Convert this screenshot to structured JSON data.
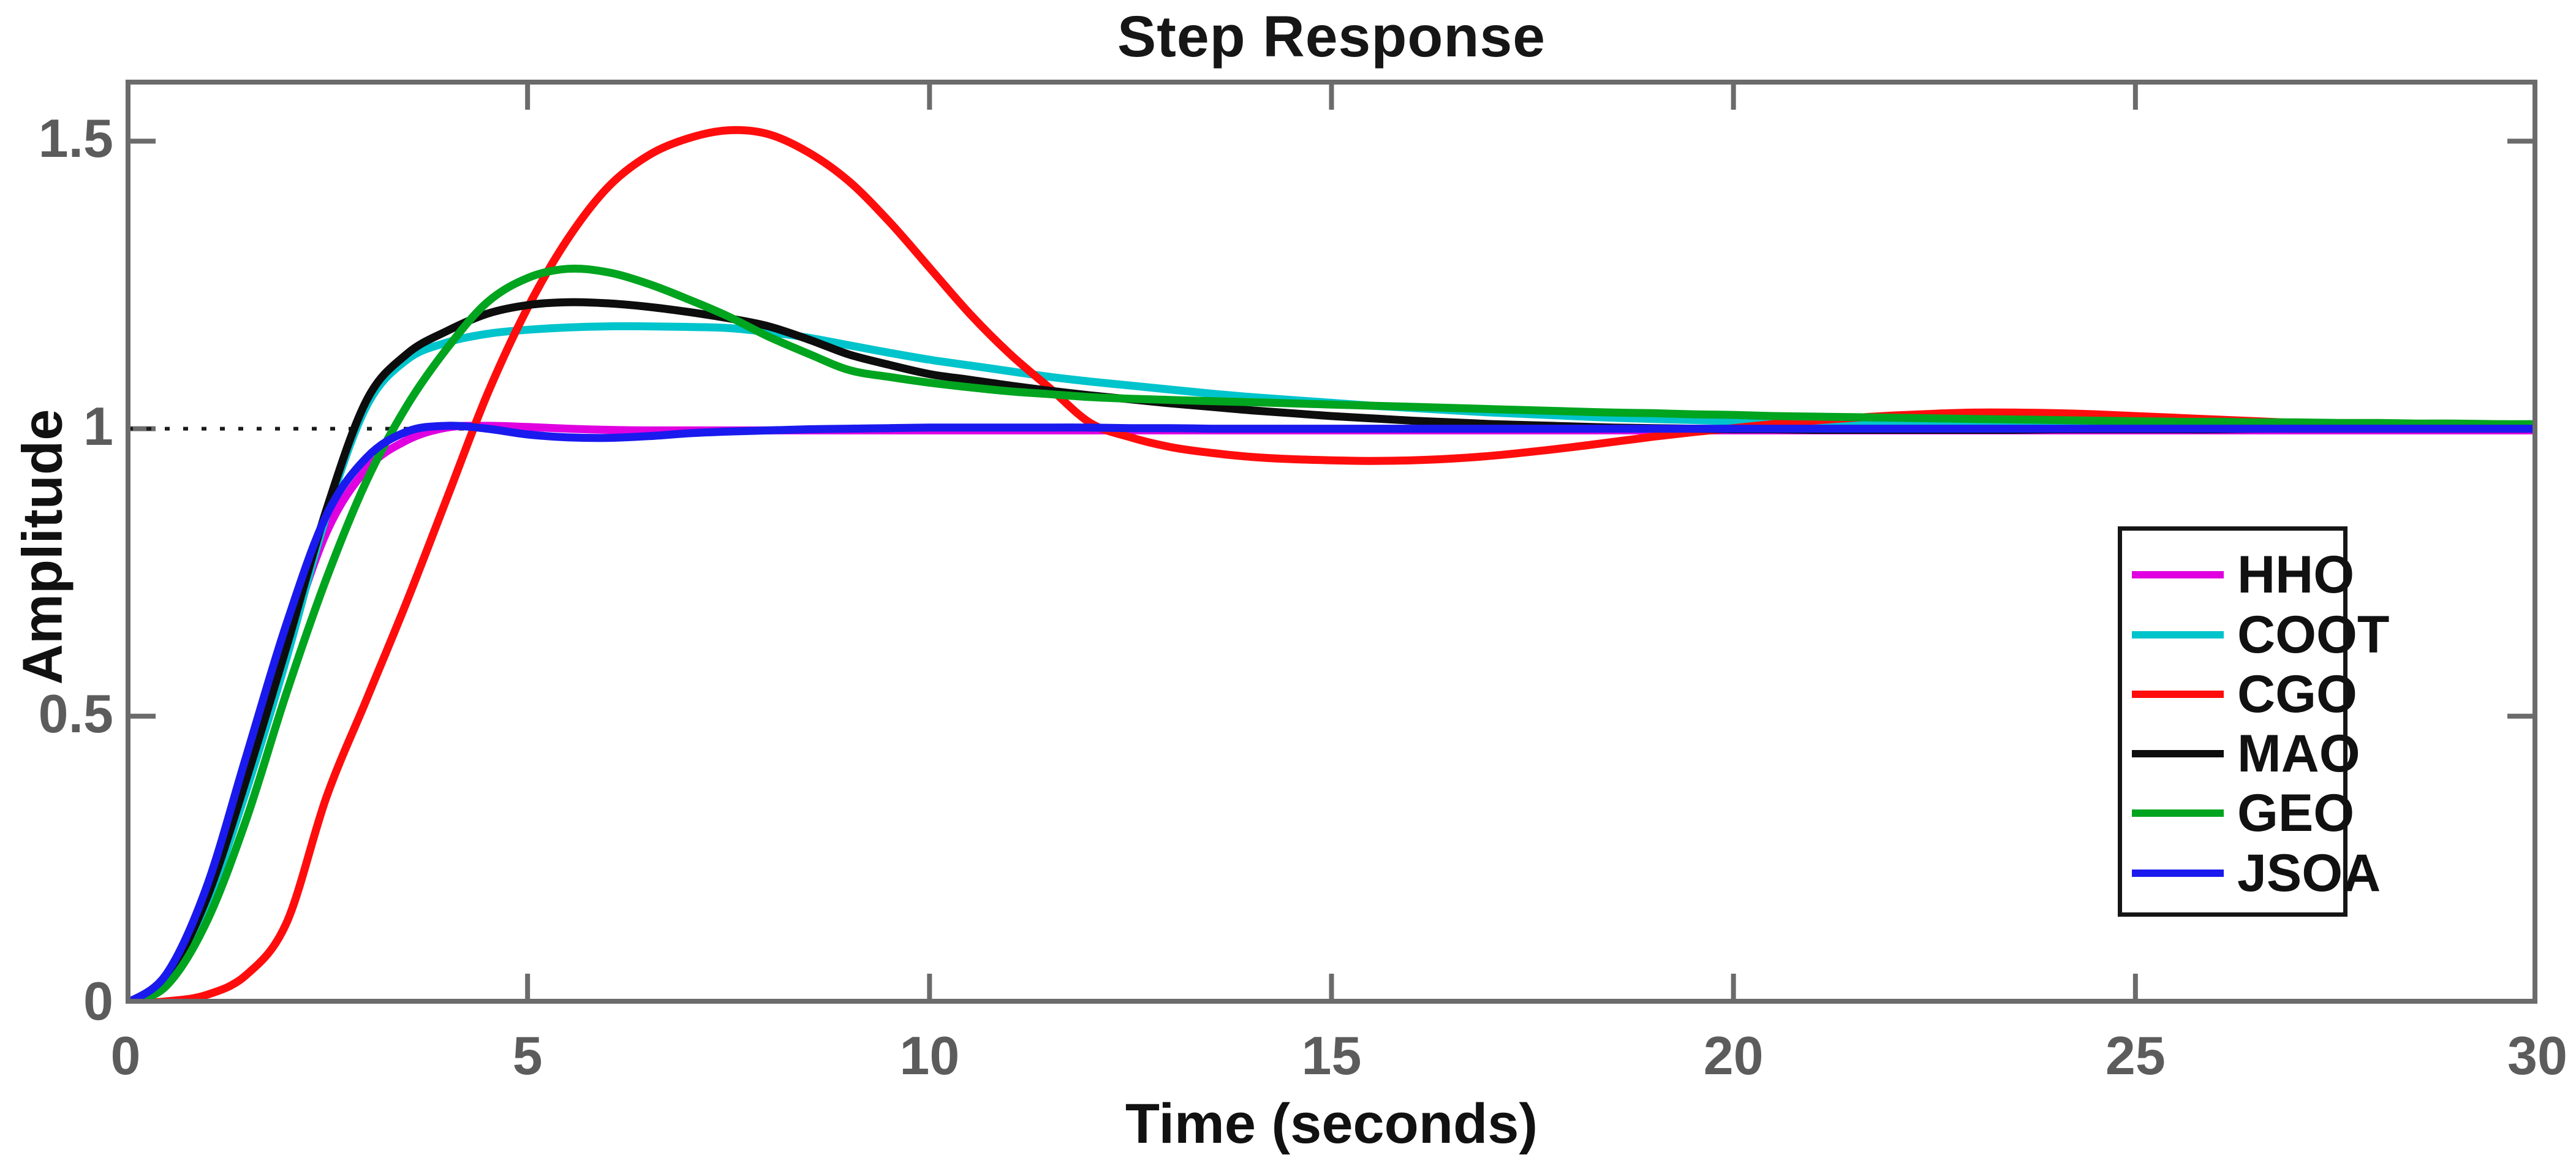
{
  "figure": {
    "background": "#ffffff"
  },
  "chart_data": {
    "type": "line",
    "title": "Step Response",
    "xlabel": "Time (seconds)",
    "ylabel": "Amplitude",
    "xlim": [
      0,
      30
    ],
    "ylim": [
      0,
      1.607
    ],
    "xticks": [
      0,
      5,
      10,
      15,
      20,
      25,
      30
    ],
    "yticks": [
      0,
      0.5,
      1,
      1.5
    ],
    "grid": false,
    "box": true,
    "axis_color": "#6b6b6b",
    "tick_label_color": "#5c5c5c",
    "reference_line": {
      "y": 1.0,
      "style": "dotted",
      "color": "#1a1a1a"
    },
    "legend_position": "right-center",
    "x": [
      0,
      0.5,
      1,
      1.5,
      2,
      2.5,
      3,
      3.5,
      4,
      4.5,
      5,
      5.5,
      6,
      6.5,
      7,
      7.5,
      8,
      8.5,
      9,
      9.5,
      10,
      10.5,
      11,
      11.5,
      12,
      12.5,
      13,
      13.5,
      14,
      14.5,
      15,
      15.5,
      16,
      16.5,
      17,
      17.5,
      18,
      18.5,
      19,
      19.5,
      20,
      20.5,
      21,
      21.5,
      22,
      22.5,
      23,
      23.5,
      24,
      24.5,
      25,
      25.5,
      26,
      26.5,
      27,
      27.5,
      28,
      28.5,
      29,
      29.5,
      30
    ],
    "series": [
      {
        "name": "HHO",
        "color": "#e000e0",
        "peak": {
          "time": 4.5,
          "amplitude": 1.005
        },
        "settles_to": 1.0,
        "values": [
          0,
          0.04,
          0.18,
          0.4,
          0.62,
          0.82,
          0.93,
          0.98,
          1.002,
          1.005,
          1.003,
          1.0,
          0.998,
          0.997,
          0.997,
          0.997,
          0.997,
          0.997,
          0.997,
          0.997,
          0.997,
          0.997,
          0.997,
          0.997,
          0.997,
          0.997,
          0.997,
          0.997,
          0.997,
          0.997,
          0.997,
          0.997,
          0.997,
          0.997,
          0.997,
          0.997,
          0.997,
          0.997,
          0.997,
          0.997,
          0.997,
          0.997,
          0.997,
          0.997,
          0.997,
          0.997,
          0.997,
          0.997,
          0.997,
          0.997,
          0.997,
          0.997,
          0.997,
          0.997,
          0.997,
          0.997,
          0.997,
          0.997,
          0.997,
          0.997,
          0.997
        ]
      },
      {
        "name": "COOT",
        "color": "#00c4cc",
        "peak": {
          "time": 6.0,
          "amplitude": 1.178
        },
        "settles_to": 1.0,
        "values": [
          0,
          0.04,
          0.17,
          0.37,
          0.6,
          0.85,
          1.04,
          1.12,
          1.15,
          1.165,
          1.172,
          1.176,
          1.178,
          1.178,
          1.177,
          1.175,
          1.168,
          1.158,
          1.145,
          1.132,
          1.12,
          1.11,
          1.1,
          1.09,
          1.082,
          1.075,
          1.068,
          1.061,
          1.055,
          1.05,
          1.045,
          1.04,
          1.036,
          1.032,
          1.028,
          1.025,
          1.022,
          1.019,
          1.017,
          1.015,
          1.013,
          1.012,
          1.01,
          1.009,
          1.008,
          1.007,
          1.006,
          1.006,
          1.005,
          1.005,
          1.004,
          1.004,
          1.003,
          1.003,
          1.003,
          1.002,
          1.002,
          1.002,
          1.001,
          1.001,
          1.001
        ]
      },
      {
        "name": "CGO",
        "color": "#ff0d0d",
        "peak": {
          "time": 7.4,
          "amplitude": 1.52
        },
        "undershoot": {
          "time": 15.5,
          "amplitude": 0.944
        },
        "settles_to": 1.0,
        "values": [
          0,
          0.004,
          0.015,
          0.05,
          0.14,
          0.36,
          0.53,
          0.7,
          0.88,
          1.06,
          1.21,
          1.33,
          1.42,
          1.475,
          1.505,
          1.519,
          1.512,
          1.48,
          1.43,
          1.36,
          1.28,
          1.2,
          1.13,
          1.07,
          1.01,
          0.985,
          0.968,
          0.958,
          0.951,
          0.947,
          0.945,
          0.944,
          0.945,
          0.948,
          0.953,
          0.96,
          0.968,
          0.977,
          0.986,
          0.994,
          1.001,
          1.008,
          1.014,
          1.019,
          1.023,
          1.026,
          1.028,
          1.028,
          1.027,
          1.025,
          1.022,
          1.019,
          1.016,
          1.013,
          1.01,
          1.008,
          1.006,
          1.005,
          1.004,
          1.003,
          1.002
        ]
      },
      {
        "name": "MAO",
        "color": "#0d0d0d",
        "peak": {
          "time": 5.5,
          "amplitude": 1.22
        },
        "settles_to": 1.0,
        "values": [
          0,
          0.045,
          0.18,
          0.39,
          0.62,
          0.86,
          1.05,
          1.13,
          1.17,
          1.2,
          1.215,
          1.22,
          1.218,
          1.212,
          1.203,
          1.192,
          1.178,
          1.155,
          1.129,
          1.111,
          1.095,
          1.085,
          1.075,
          1.066,
          1.058,
          1.051,
          1.044,
          1.038,
          1.032,
          1.027,
          1.022,
          1.018,
          1.014,
          1.011,
          1.008,
          1.006,
          1.004,
          1.002,
          1.001,
          1.0,
          0.999,
          0.999,
          0.998,
          0.998,
          0.998,
          0.998,
          0.998,
          0.998,
          0.999,
          0.999,
          0.999,
          0.999,
          0.999,
          1.0,
          1.0,
          1.0,
          1.0,
          1.0,
          1.0,
          1.0,
          1.0
        ]
      },
      {
        "name": "GEO",
        "color": "#00a41e",
        "peak": {
          "time": 5.5,
          "amplitude": 1.278
        },
        "settles_to": 1.0,
        "values": [
          0,
          0.03,
          0.14,
          0.32,
          0.54,
          0.74,
          0.91,
          1.04,
          1.14,
          1.22,
          1.262,
          1.278,
          1.272,
          1.252,
          1.225,
          1.195,
          1.16,
          1.13,
          1.102,
          1.09,
          1.08,
          1.072,
          1.065,
          1.06,
          1.055,
          1.052,
          1.05,
          1.048,
          1.046,
          1.044,
          1.042,
          1.04,
          1.038,
          1.036,
          1.034,
          1.032,
          1.03,
          1.028,
          1.027,
          1.025,
          1.024,
          1.022,
          1.021,
          1.02,
          1.019,
          1.018,
          1.017,
          1.016,
          1.015,
          1.014,
          1.013,
          1.012,
          1.012,
          1.011,
          1.011,
          1.01,
          1.01,
          1.009,
          1.009,
          1.008,
          1.008
        ]
      },
      {
        "name": "JSOA",
        "color": "#1a1aee",
        "peak": {
          "time": 4.0,
          "amplitude": 1.005
        },
        "settles_to": 1.0,
        "values": [
          0,
          0.05,
          0.2,
          0.43,
          0.66,
          0.85,
          0.95,
          0.995,
          1.005,
          1.0,
          0.99,
          0.985,
          0.984,
          0.987,
          0.992,
          0.995,
          0.997,
          0.999,
          1.0,
          1.001,
          1.002,
          1.002,
          1.002,
          1.002,
          1.002,
          1.001,
          1.001,
          1.0,
          1.0,
          1.0,
          1.0,
          1.0,
          1.0,
          1.0,
          1.0,
          1.0,
          1.0,
          1.0,
          1.0,
          1.0,
          1.0,
          1.0,
          1.0,
          1.0,
          1.0,
          1.0,
          1.0,
          1.0,
          1.0,
          1.0,
          1.0,
          1.0,
          1.0,
          1.0,
          1.0,
          1.0,
          1.0,
          1.0,
          1.0,
          1.0,
          1.0
        ]
      }
    ]
  }
}
